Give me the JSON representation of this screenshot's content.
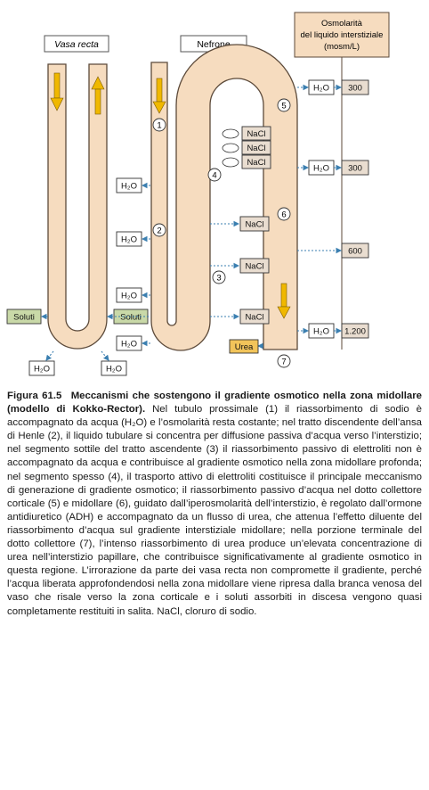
{
  "labels": {
    "vasa_recta": "Vasa recta",
    "nefrone": "Nefrone",
    "osm_header_line1": "Osmolarità",
    "osm_header_line2": "del liquido interstiziale",
    "osm_header_line3": "(mosm/L)"
  },
  "osmolarity_values": [
    "300",
    "300",
    "600",
    "1.200"
  ],
  "segment_numbers": [
    "1",
    "2",
    "3",
    "4",
    "5",
    "6",
    "7"
  ],
  "substances": {
    "water": "H₂O",
    "nacl": "NaCl",
    "urea": "Urea",
    "soluti": "Soluti"
  },
  "colors": {
    "tubule_fill": "#f6dcbf",
    "tubule_stroke": "#5c4a3a",
    "box_fill": "#e9ddd0",
    "soluti_fill": "#c9d9a8",
    "urea_fill": "#f2c45a",
    "header_fill": "#f6dcbf",
    "arrow_yellow": "#f0b800",
    "dotted_blue": "#3b7fb0"
  },
  "caption": {
    "figure_number": "Figura 61.5",
    "title": "Meccanismi che sostengono il gradiente osmotico nella zona midollare (modello di Kokko-Rector).",
    "body": "Nel tubulo prossimale (1) il riassorbimento di sodio è accompagnato da acqua (H₂O) e l’osmolarità resta costante; nel tratto discendente dell’ansa di Henle (2), il liquido tubulare si concentra per diffusione passiva d’acqua verso l’interstizio; nel segmento sottile del tratto ascendente (3) il riassorbimento passivo di elettroliti non è accompagnato da acqua e contribuisce al gradiente osmotico nella zona midollare profonda; nel segmento spesso (4), il trasporto attivo di elettroliti costituisce il principale meccanismo di generazione di gradiente osmotico; il riassorbimento passivo d’acqua nel dotto collettore corticale (5) e midollare (6), guidato dall’iperosmolarità dell’interstizio, è regolato dall’ormone antidiuretico (ADH) e accompagnato da un flusso di urea, che attenua l’effetto diluente del riassorbimento d’acqua sul gradiente interstiziale midollare; nella porzione terminale del dotto collettore (7), l’intenso riassorbimento di urea produce un’elevata concentrazione di urea nell’interstizio papillare, che contribuisce significativamente al gradiente osmotico in questa regione. L’irrorazione da parte dei vasa recta non compromette il gradiente, perché l’acqua liberata approfondendosi nella zona midollare viene ripresa dalla branca venosa del vaso che risale verso la zona corticale e i soluti assorbiti in discesa vengono quasi completamente restituiti in salita. NaCl, cloruro di sodio."
  }
}
